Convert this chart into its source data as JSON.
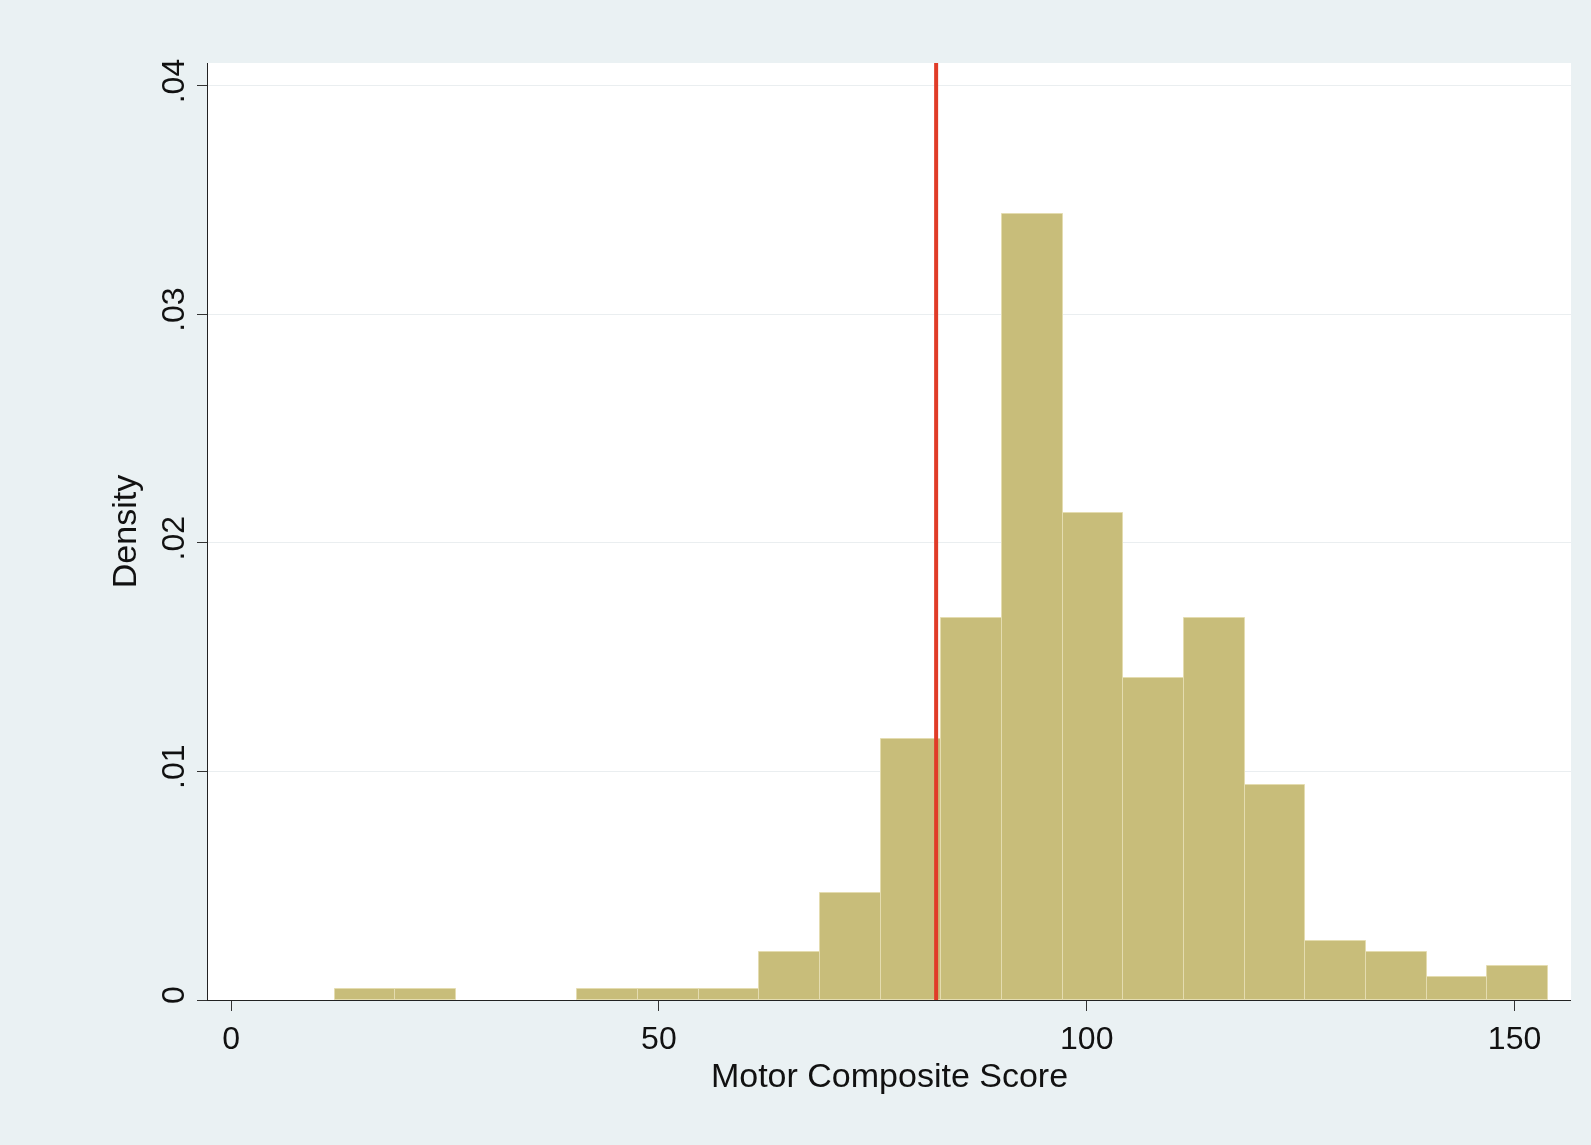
{
  "chart_data": {
    "type": "histogram",
    "xlabel": "Motor Composite Score",
    "ylabel": "Density",
    "bins": [
      12.1,
      19.19,
      26.28,
      33.37,
      40.46,
      47.55,
      54.64,
      61.73,
      68.82,
      75.91,
      83.0,
      90.09,
      97.18,
      104.27,
      111.36,
      118.45,
      125.54,
      132.63,
      139.72,
      146.81,
      153.9
    ],
    "values": [
      0.0005,
      0.0005,
      0,
      0,
      0.0005,
      0.0005,
      0.0005,
      0.0021,
      0.0047,
      0.0114,
      0.0167,
      0.0344,
      0.0213,
      0.0141,
      0.0167,
      0.0094,
      0.0026,
      0.0021,
      0.001,
      0.0015
    ],
    "color": "#c8bd7a",
    "xlim": [
      -2.7,
      156.6
    ],
    "xticks": [
      0,
      50,
      100,
      150
    ],
    "ylim": [
      0,
      0.041
    ],
    "yticks": [
      {
        "value": 0,
        "label": "0"
      },
      {
        "value": 0.01,
        "label": ".01"
      },
      {
        "value": 0.02,
        "label": ".02"
      },
      {
        "value": 0.03,
        "label": ".03"
      },
      {
        "value": 0.04,
        "label": ".04"
      }
    ],
    "grid": "y",
    "ref_lines": [
      {
        "axis": "x",
        "value": 82.4,
        "color": "#e03c28"
      }
    ]
  }
}
